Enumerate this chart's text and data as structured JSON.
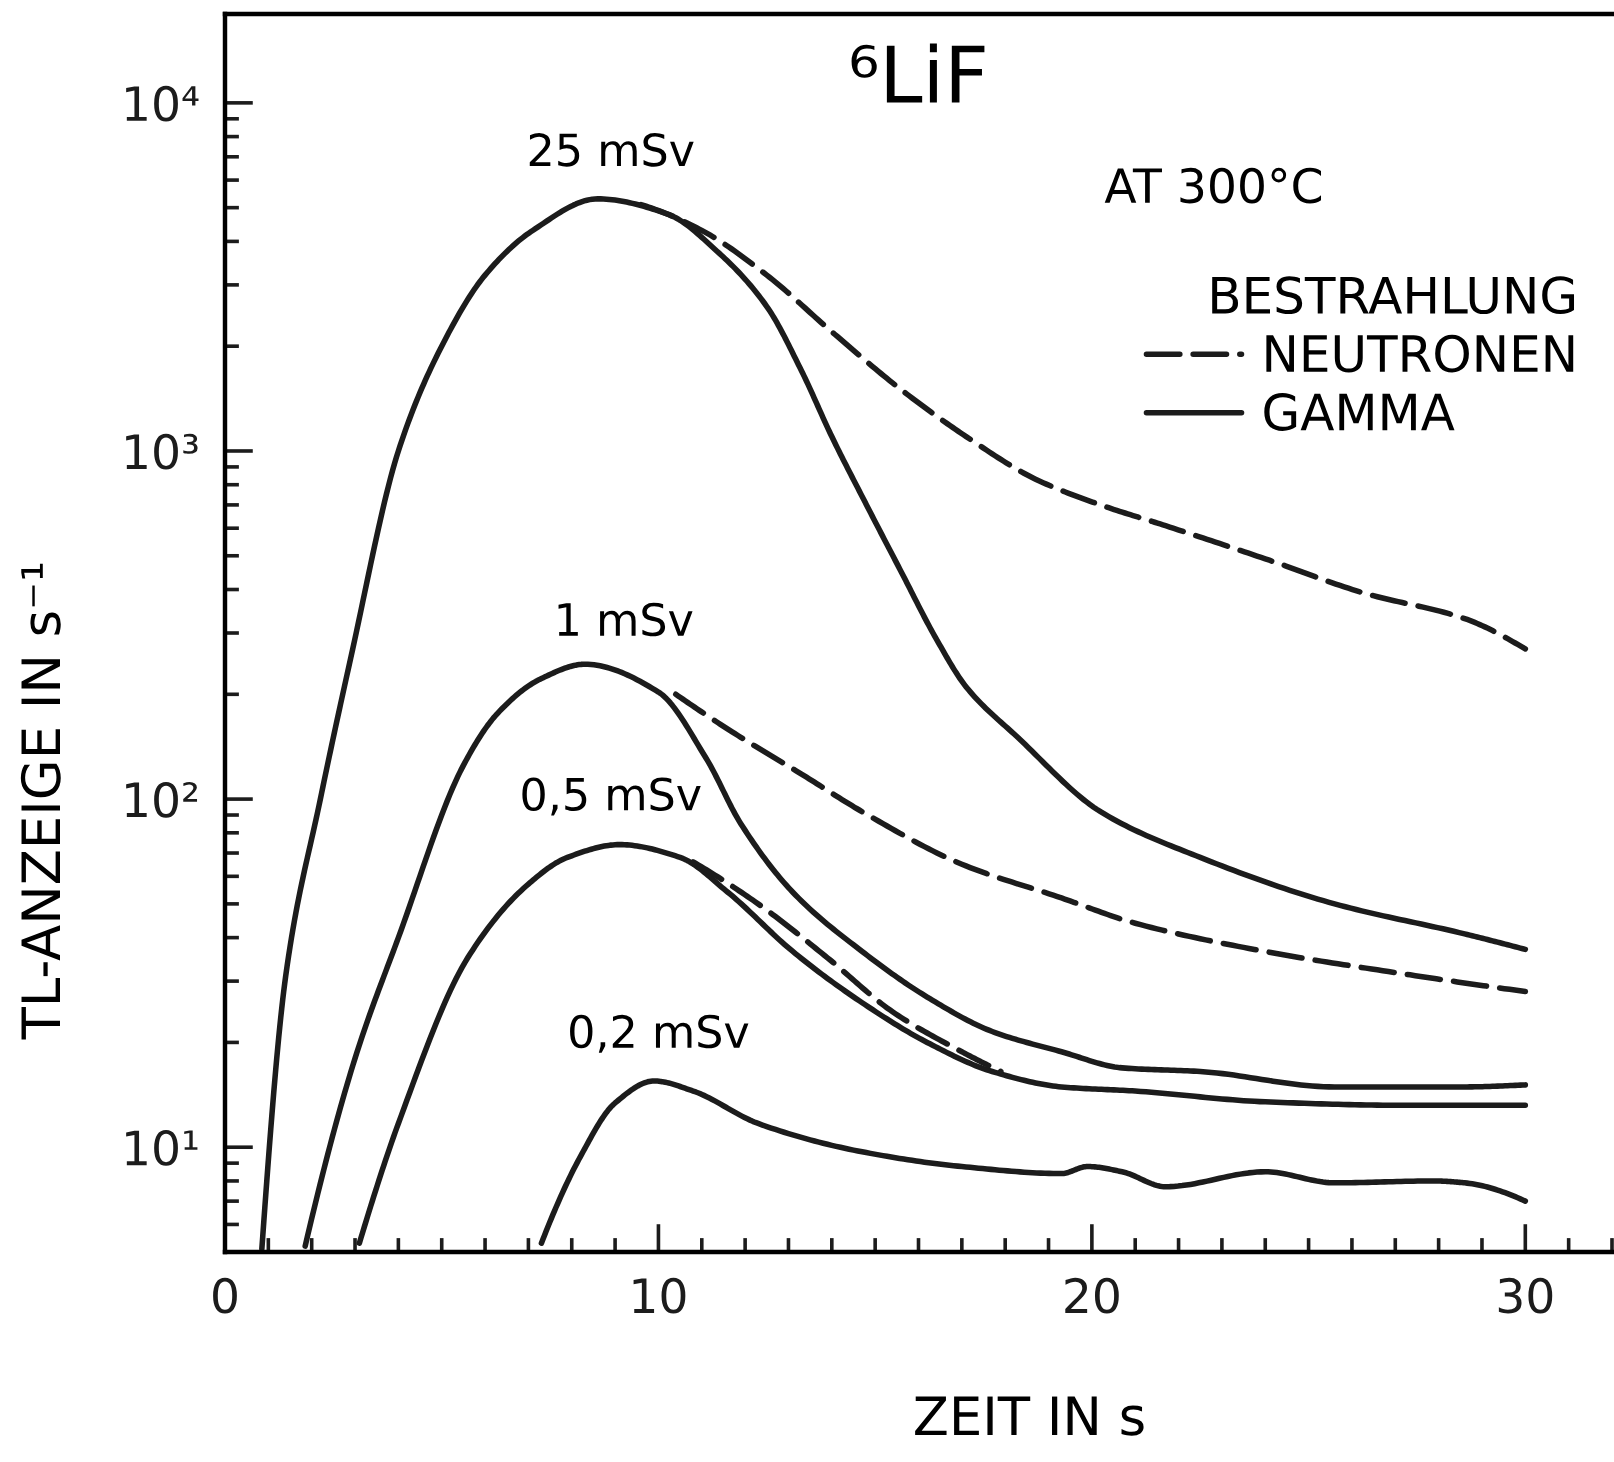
{
  "chart_data": {
    "type": "line",
    "title": "⁶LiF",
    "xlabel": "ZEIT IN s",
    "ylabel": "TL-ANZEIGE IN s⁻¹",
    "legend_title": "BESTRAHLUNG",
    "legend": "top right",
    "log": "y",
    "xlim": [
      0,
      32
    ],
    "xticks": [
      0,
      10,
      20,
      30
    ],
    "ylim": [
      5,
      18000
    ],
    "yticks": [
      {
        "value": 10,
        "label": "10¹"
      },
      {
        "value": 100,
        "label": "10²"
      },
      {
        "value": 1000,
        "label": "10³"
      },
      {
        "value": 10000,
        "label": "10⁴"
      }
    ],
    "annotations": [
      "AT 300°C",
      {
        "text": "25 mSv",
        "x": 8.9,
        "y": 5250
      },
      {
        "text": "1 mSv",
        "x": 9.2,
        "y": 235
      },
      {
        "text": "0,5 mSv",
        "x": 8.9,
        "y": 74
      },
      {
        "text": "0,2 mSv",
        "x": 10.0,
        "y": 15.4
      }
    ],
    "series": [
      {
        "name": "NEUTRONEN",
        "color": "#1c1c1c",
        "line_style": "dashed",
        "x": [
          9.6,
          11.0,
          12.5,
          14.0,
          15.6,
          17.1,
          18.7,
          20.2,
          21.7,
          24.0,
          26.3,
          28.6,
          30
        ],
        "values": [
          5100,
          4300,
          3200,
          2200,
          1500,
          1100,
          830,
          700,
          610,
          490,
          390,
          330,
          270
        ]
      },
      {
        "name": "GAMMA",
        "color": "#1c1c1c",
        "line_style": "solid",
        "x": [
          0.85,
          1.4,
          2.2,
          2.9,
          4.0,
          5.0,
          6.0,
          7.1,
          8.6,
          10.2,
          11.4,
          12.5,
          13.3,
          14.0,
          14.8,
          15.6,
          16.4,
          17.1,
          18.3,
          20.2,
          22.5,
          25.6,
          28.6,
          30
        ],
        "values": [
          5.1,
          31,
          100,
          254,
          1000,
          2000,
          3200,
          4300,
          5300,
          4800,
          3700,
          2600,
          1700,
          1100,
          700,
          450,
          290,
          210,
          150,
          92,
          68,
          50,
          41,
          37
        ]
      },
      {
        "color": "#1c1c1c",
        "line_style": "solid",
        "x": [
          1.85,
          3.0,
          4.0,
          5.5,
          6.3,
          7.3,
          8.3,
          10.0,
          11.1,
          11.9,
          13.1,
          14.7,
          16.2,
          17.7,
          19.3,
          20.7,
          22.5,
          25.6,
          28.6,
          30
        ],
        "values": [
          5.2,
          18,
          40,
          125,
          177,
          222,
          244,
          203,
          131,
          85,
          54,
          36.5,
          27,
          21.5,
          18.8,
          16.9,
          16.5,
          14.9,
          14.9,
          15.1
        ]
      },
      {
        "color": "#1c1c1c",
        "line_style": "dashed",
        "x": [
          10.4,
          11.7,
          13.3,
          14.7,
          17.0,
          19.3,
          21.0,
          24.0,
          27.1,
          30
        ],
        "values": [
          200,
          156,
          118,
          92,
          65,
          52,
          44,
          36.5,
          31.6,
          28
        ]
      },
      {
        "color": "#1c1c1c",
        "line_style": "solid",
        "x": [
          3.1,
          4.0,
          5.6,
          7.0,
          7.9,
          9.1,
          10.5,
          11.6,
          13.1,
          14.7,
          16.2,
          17.7,
          19.3,
          21.0,
          24.0,
          27.1,
          30
        ],
        "values": [
          5.3,
          11.7,
          35,
          57,
          68,
          74,
          68,
          54,
          36.5,
          26,
          20,
          16.5,
          14.9,
          14.5,
          13.5,
          13.2,
          13.2
        ]
      },
      {
        "color": "#1c1c1c",
        "line_style": "dashed",
        "x": [
          10.8,
          12.3,
          13.9,
          15.4,
          17.0,
          17.9
        ],
        "values": [
          66,
          50,
          35,
          24.5,
          18.8,
          16.5
        ]
      },
      {
        "color": "#1c1c1c",
        "line_style": "solid",
        "x": [
          7.3,
          8.2,
          9.0,
          9.9,
          10.8,
          12.3,
          14.7,
          17.0,
          19.3,
          19.9,
          20.7,
          21.7,
          24.0,
          25.6,
          27.9,
          28.6,
          30
        ],
        "values": [
          5.3,
          9.4,
          13.4,
          15.5,
          14.5,
          11.7,
          9.7,
          8.8,
          8.4,
          8.8,
          8.5,
          7.7,
          8.5,
          7.9,
          8.0,
          7.9,
          7.0
        ]
      }
    ]
  }
}
